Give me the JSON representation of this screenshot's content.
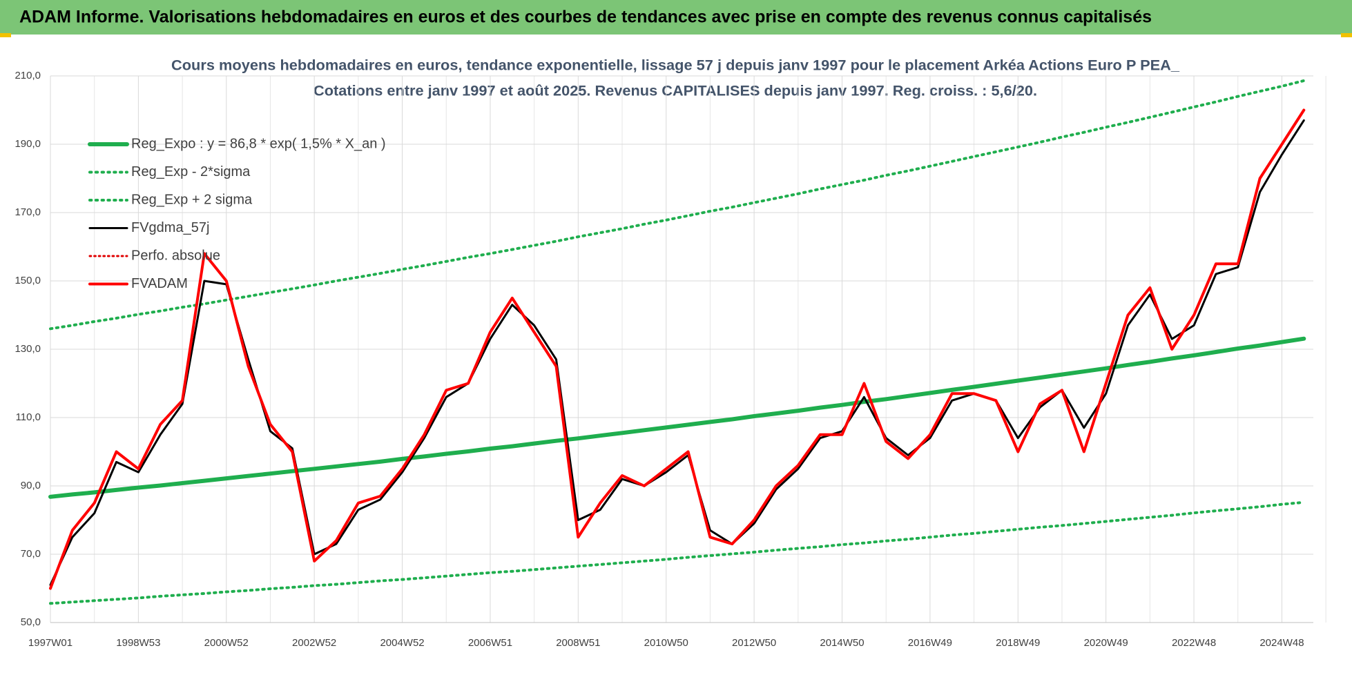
{
  "header": {
    "title": "ADAM Informe. Valorisations hebdomadaires en euros et des courbes de tendances avec prise en compte des revenus connus capitalisés"
  },
  "chart_data": {
    "type": "line",
    "title": "Cours moyens hebdomadaires en euros, tendance exponentielle, lissage 57 j depuis janv 1997 pour le placement Arkéa Actions Euro P PEA_",
    "subtitle": "Cotations entre janv 1997 et août 2025. Revenus CAPITALISES depuis janv 1997. Reg. croiss. : 5,6/20.",
    "categories": [
      "1997W01",
      null,
      null,
      null,
      "1998W53",
      null,
      null,
      null,
      "2000W52",
      null,
      null,
      null,
      "2002W52",
      null,
      null,
      null,
      "2004W52",
      null,
      null,
      null,
      "2006W51",
      null,
      null,
      null,
      "2008W51",
      null,
      null,
      null,
      "2010W50",
      null,
      null,
      null,
      "2012W50",
      null,
      null,
      null,
      "2014W50",
      null,
      null,
      null,
      "2016W49",
      null,
      null,
      null,
      "2018W49",
      null,
      null,
      null,
      "2020W49",
      null,
      null,
      null,
      "2022W48",
      null,
      null,
      null,
      "2024W48",
      null
    ],
    "ylim": [
      50,
      210
    ],
    "yticks": [
      {
        "value": 50,
        "label": "50,0"
      },
      {
        "value": 70,
        "label": "70,0"
      },
      {
        "value": 90,
        "label": "90,0"
      },
      {
        "value": 110,
        "label": "110,0"
      },
      {
        "value": 130,
        "label": "130,0"
      },
      {
        "value": 150,
        "label": "150,0"
      },
      {
        "value": 170,
        "label": "170,0"
      },
      {
        "value": 190,
        "label": "190,0"
      },
      {
        "value": 210,
        "label": "210,0"
      }
    ],
    "grid": true,
    "series": [
      {
        "name": "Reg_Expo : y = 86,8 * exp( 1,5% *  X_an )",
        "color": "#1fae4e",
        "style": "solid",
        "width": 6,
        "values": [
          86.8,
          87.5,
          88.1,
          88.8,
          89.5,
          90.1,
          90.8,
          91.5,
          92.2,
          92.9,
          93.6,
          94.3,
          95.0,
          95.7,
          96.4,
          97.1,
          97.9,
          98.6,
          99.4,
          100.1,
          100.9,
          101.6,
          102.4,
          103.2,
          103.9,
          104.7,
          105.5,
          106.3,
          107.1,
          107.9,
          108.7,
          109.5,
          110.4,
          111.2,
          112.0,
          112.9,
          113.7,
          114.6,
          115.4,
          116.3,
          117.2,
          118.1,
          119.0,
          119.9,
          120.8,
          121.7,
          122.6,
          123.5,
          124.4,
          125.4,
          126.3,
          127.3,
          128.2,
          129.2,
          130.2,
          131.1,
          132.1,
          133.1
        ]
      },
      {
        "name": "Reg_Exp - 2*sigma",
        "color": "#1fae4e",
        "style": "dotted",
        "width": 4,
        "values": [
          55.6,
          56.0,
          56.4,
          56.8,
          57.2,
          57.7,
          58.1,
          58.5,
          59.0,
          59.4,
          59.9,
          60.3,
          60.8,
          61.2,
          61.7,
          62.2,
          62.6,
          63.1,
          63.6,
          64.1,
          64.6,
          65.0,
          65.5,
          66.0,
          66.5,
          67.0,
          67.5,
          68.0,
          68.5,
          69.1,
          69.6,
          70.1,
          70.6,
          71.2,
          71.7,
          72.2,
          72.8,
          73.3,
          73.9,
          74.4,
          75.0,
          75.6,
          76.1,
          76.7,
          77.3,
          77.9,
          78.4,
          79.0,
          79.6,
          80.2,
          80.8,
          81.4,
          82.1,
          82.7,
          83.3,
          83.9,
          84.6,
          85.2
        ]
      },
      {
        "name": "Reg_Exp + 2 sigma",
        "color": "#1fae4e",
        "style": "dotted",
        "width": 4,
        "values": [
          136.0,
          137.0,
          138.1,
          139.1,
          140.2,
          141.2,
          142.3,
          143.3,
          144.4,
          145.5,
          146.6,
          147.7,
          148.8,
          150.0,
          151.1,
          152.2,
          153.4,
          154.5,
          155.7,
          156.9,
          158.0,
          159.2,
          160.4,
          161.6,
          162.9,
          164.1,
          165.3,
          166.6,
          167.8,
          169.1,
          170.4,
          171.6,
          172.9,
          174.2,
          175.5,
          176.9,
          178.2,
          179.5,
          180.9,
          182.2,
          183.6,
          185.0,
          186.4,
          187.8,
          189.2,
          190.6,
          192.1,
          193.5,
          195.0,
          196.4,
          197.9,
          199.4,
          200.9,
          202.4,
          204.0,
          205.5,
          207.0,
          208.6
        ]
      },
      {
        "name": "FVgdma_57j",
        "color": "#000000",
        "style": "solid",
        "width": 3,
        "values": [
          61,
          75,
          82,
          97,
          94,
          105,
          114,
          150,
          149,
          127,
          106,
          101,
          70,
          73,
          83,
          86,
          94,
          104,
          116,
          120,
          133,
          143,
          137,
          127,
          80,
          83,
          92,
          90,
          94,
          99,
          77,
          73,
          79,
          89,
          95,
          104,
          106,
          116,
          104,
          99,
          104,
          115,
          117,
          115,
          104,
          113,
          118,
          107,
          117,
          137,
          146,
          133,
          137,
          152,
          154,
          176,
          187,
          197
        ]
      },
      {
        "name": "Perfo. absolue",
        "color": "#e00000",
        "style": "dotted",
        "width": 3,
        "values": [
          null,
          null,
          null,
          null,
          null,
          null,
          null,
          null,
          null,
          null,
          null,
          null,
          null,
          null,
          null,
          null,
          null,
          null,
          null,
          null,
          null,
          null,
          null,
          null,
          null,
          null,
          null,
          null,
          null,
          null,
          null,
          null,
          null,
          null,
          null,
          null,
          null,
          null,
          null,
          null,
          null,
          null,
          null,
          null,
          null,
          null,
          null,
          null,
          null,
          null,
          null,
          null,
          null,
          null,
          null,
          null,
          null,
          null
        ]
      },
      {
        "name": "FVADAM",
        "color": "#ff0000",
        "style": "solid",
        "width": 4,
        "values": [
          60,
          77,
          85,
          100,
          95,
          108,
          115,
          158,
          150,
          125,
          108,
          100,
          68,
          74,
          85,
          87,
          95,
          105,
          118,
          120,
          135,
          145,
          135,
          125,
          75,
          85,
          93,
          90,
          95,
          100,
          75,
          73,
          80,
          90,
          96,
          105,
          105,
          120,
          103,
          98,
          105,
          117,
          117,
          115,
          100,
          114,
          118,
          100,
          120,
          140,
          148,
          130,
          140,
          155,
          155,
          180,
          190,
          200
        ]
      }
    ]
  }
}
